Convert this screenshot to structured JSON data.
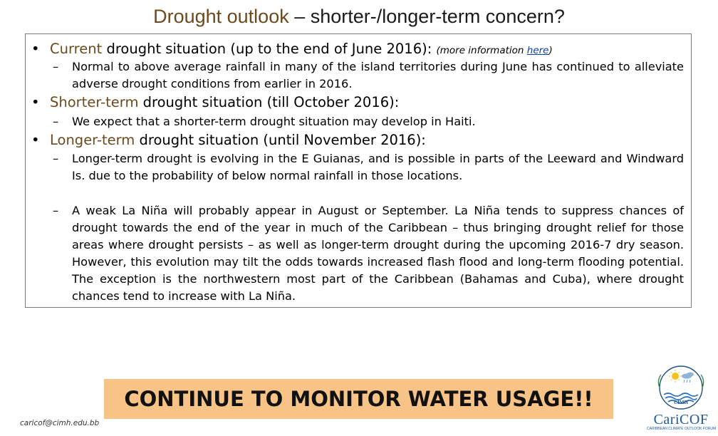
{
  "title": {
    "highlight": "Drought outlook",
    "rest": " – shorter-/longer-term concern?"
  },
  "sections": [
    {
      "bullet": "•",
      "highlight": "Current",
      "label": " drought situation (up to the end of June 2016):",
      "note_prefix": "(more information ",
      "link_text": "here",
      "note_suffix": ")",
      "items": [
        "Normal to above average rainfall in many of the island territories during June has continued to alleviate adverse drought conditions from earlier in 2016."
      ]
    },
    {
      "bullet": "•",
      "highlight": "Shorter-term",
      "label": " drought situation (till October 2016):",
      "items": [
        "We expect that a shorter-term drought situation may develop in Haiti."
      ]
    },
    {
      "bullet": "•",
      "highlight": "Longer-term",
      "label": " drought situation (until November 2016):",
      "items": [
        "Longer-term drought is evolving in the E Guianas, and is possible in parts of the Leeward and Windward Is. due to the probability of below normal rainfall in those locations.",
        "A weak La Niña will probably appear in August or September. La Niña tends to suppress chances of drought towards the end of the year in much of the Caribbean – thus bringing drought relief for those areas where drought persists – as well as longer-term drought during the upcoming 2016-7 dry season. However, this evolution may tilt the odds towards increased flash flood and long-term flooding potential. The exception is the northwestern most part of the Caribbean (Bahamas and Cuba), where drought chances tend to increase with La Niña."
      ]
    }
  ],
  "dash": "–",
  "banner": {
    "text": "CONTINUE TO MONITOR WATER USAGE!!",
    "color": "#f8c386"
  },
  "footer": {
    "email": "caricof@cimh.edu.bb"
  },
  "logo": {
    "icon": "cimh-caricof-logo",
    "inner_label": "CIMH",
    "name": "CariCOF",
    "tagline": "CARIBBEAN CLIMATE OUTLOOK FORUM"
  },
  "colors": {
    "highlight": "#6a4a1e",
    "link": "#0a3fa6",
    "logo_blue": "#1f5aa0"
  }
}
